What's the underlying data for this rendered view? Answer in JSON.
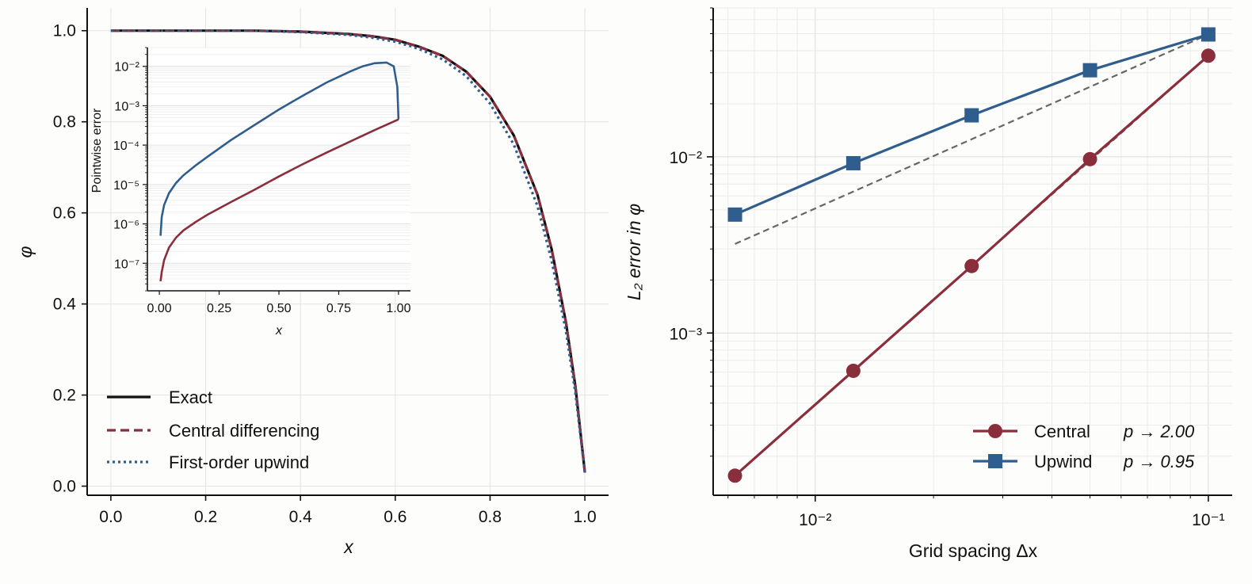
{
  "chart_data": [
    {
      "type": "line",
      "xlabel": "x",
      "ylabel": "φ",
      "xlim": [
        -0.05,
        1.05
      ],
      "ylim": [
        -0.02,
        1.05
      ],
      "xticks": [
        0.0,
        0.2,
        0.4,
        0.6,
        0.8,
        1.0
      ],
      "xtick_labels": [
        "0.0",
        "0.2",
        "0.4",
        "0.6",
        "0.8",
        "1.0"
      ],
      "yticks": [
        0.0,
        0.2,
        0.4,
        0.6,
        0.8,
        1.0
      ],
      "ytick_labels": [
        "0.0",
        "0.2",
        "0.4",
        "0.6",
        "0.8",
        "1.0"
      ],
      "grid": true,
      "legend_position": "bottom-left",
      "series": [
        {
          "name": "Exact",
          "color": "#111111",
          "style": "solid",
          "x": [
            0.0,
            0.1,
            0.2,
            0.3,
            0.4,
            0.5,
            0.55,
            0.6,
            0.65,
            0.7,
            0.75,
            0.8,
            0.85,
            0.9,
            0.93,
            0.96,
            0.98,
            1.0
          ],
          "y": [
            1.0,
            1.0,
            1.0,
            1.0,
            0.998,
            0.993,
            0.988,
            0.98,
            0.965,
            0.945,
            0.91,
            0.855,
            0.77,
            0.64,
            0.52,
            0.36,
            0.22,
            0.03
          ]
        },
        {
          "name": "Central differencing",
          "color": "#8b2e3c",
          "style": "dashed",
          "x": [
            0.0,
            0.1,
            0.2,
            0.3,
            0.4,
            0.5,
            0.55,
            0.6,
            0.65,
            0.7,
            0.75,
            0.8,
            0.85,
            0.9,
            0.93,
            0.96,
            0.98,
            1.0
          ],
          "y": [
            1.0,
            1.0,
            1.0,
            1.0,
            0.998,
            0.993,
            0.988,
            0.98,
            0.965,
            0.945,
            0.91,
            0.855,
            0.77,
            0.64,
            0.52,
            0.36,
            0.22,
            0.03
          ]
        },
        {
          "name": "First-order upwind",
          "color": "#2f5d8e",
          "style": "dotted",
          "x": [
            0.0,
            0.1,
            0.2,
            0.3,
            0.4,
            0.5,
            0.55,
            0.6,
            0.65,
            0.7,
            0.75,
            0.8,
            0.85,
            0.9,
            0.93,
            0.96,
            0.98,
            1.0
          ],
          "y": [
            1.0,
            1.0,
            1.0,
            1.0,
            0.997,
            0.991,
            0.985,
            0.976,
            0.96,
            0.937,
            0.9,
            0.84,
            0.75,
            0.615,
            0.495,
            0.34,
            0.205,
            0.03
          ]
        }
      ]
    },
    {
      "type": "line",
      "inset": true,
      "xlabel": "x",
      "ylabel": "Pointwise error",
      "yscale": "log",
      "xlim": [
        -0.05,
        1.05
      ],
      "ylim": [
        2e-08,
        0.03
      ],
      "xticks": [
        0.0,
        0.25,
        0.5,
        0.75,
        1.0
      ],
      "xtick_labels": [
        "0.00",
        "0.25",
        "0.50",
        "0.75",
        "1.00"
      ],
      "yticks": [
        1e-07,
        1e-06,
        1e-05,
        0.0001,
        0.001,
        0.01
      ],
      "ytick_labels": [
        "10⁻⁷",
        "10⁻⁶",
        "10⁻⁵",
        "10⁻⁴",
        "10⁻³",
        "10⁻²"
      ],
      "grid": true,
      "series": [
        {
          "color": "#2f5d8e",
          "x": [
            0.005,
            0.01,
            0.02,
            0.04,
            0.07,
            0.1,
            0.15,
            0.2,
            0.3,
            0.4,
            0.5,
            0.6,
            0.7,
            0.8,
            0.85,
            0.9,
            0.95,
            0.98,
            0.995,
            1.0
          ],
          "y": [
            5e-07,
            1.5e-06,
            3e-06,
            6e-06,
            1.1e-05,
            1.7e-05,
            3e-05,
            5e-05,
            0.000135,
            0.00033,
            0.0008,
            0.0018,
            0.0039,
            0.0075,
            0.01,
            0.012,
            0.0125,
            0.01,
            0.003,
            0.00045
          ]
        },
        {
          "color": "#8b2e3c",
          "x": [
            0.005,
            0.01,
            0.02,
            0.04,
            0.07,
            0.1,
            0.15,
            0.2,
            0.3,
            0.4,
            0.5,
            0.6,
            0.7,
            0.8,
            0.9,
            1.0
          ],
          "y": [
            3.5e-08,
            6e-08,
            1.2e-07,
            2.5e-07,
            4.5e-07,
            6.8e-07,
            1.1e-06,
            1.7e-06,
            3.6e-06,
            7.5e-06,
            1.6e-05,
            3.3e-05,
            6.5e-05,
            0.000125,
            0.00024,
            0.00045
          ]
        }
      ]
    },
    {
      "type": "line",
      "xlabel": "Grid spacing  Δx",
      "ylabel": "L₂ error in φ",
      "xscale": "log",
      "yscale": "log",
      "xlim": [
        0.0055,
        0.115
      ],
      "ylim": [
        0.00012,
        0.07
      ],
      "xticks": [
        0.01,
        0.1
      ],
      "xtick_labels": [
        "10⁻²",
        "10⁻¹"
      ],
      "yticks": [
        0.001,
        0.01
      ],
      "ytick_labels": [
        "10⁻³",
        "10⁻²"
      ],
      "grid": true,
      "legend_position": "bottom-right",
      "series": [
        {
          "name": "Central",
          "order_label": "p →  2.00",
          "color": "#8b2e3c",
          "marker": "circle",
          "x": [
            0.00625,
            0.0125,
            0.025,
            0.05,
            0.1
          ],
          "y": [
            0.000155,
            0.00061,
            0.0024,
            0.0097,
            0.0375
          ]
        },
        {
          "name": "Upwind",
          "order_label": "p →  0.95",
          "color": "#2f5d8e",
          "marker": "square",
          "x": [
            0.00625,
            0.0125,
            0.025,
            0.05,
            0.1
          ],
          "y": [
            0.0047,
            0.0092,
            0.0172,
            0.031,
            0.0495
          ]
        }
      ],
      "reference_lines": [
        {
          "color": "#666666",
          "style": "dashed",
          "x": [
            0.00625,
            0.1
          ],
          "y": [
            0.0032,
            0.0495
          ]
        },
        {
          "color": "#666666",
          "style": "dashed",
          "x": [
            0.00625,
            0.1
          ],
          "y": [
            0.000155,
            0.0375
          ]
        }
      ]
    }
  ]
}
